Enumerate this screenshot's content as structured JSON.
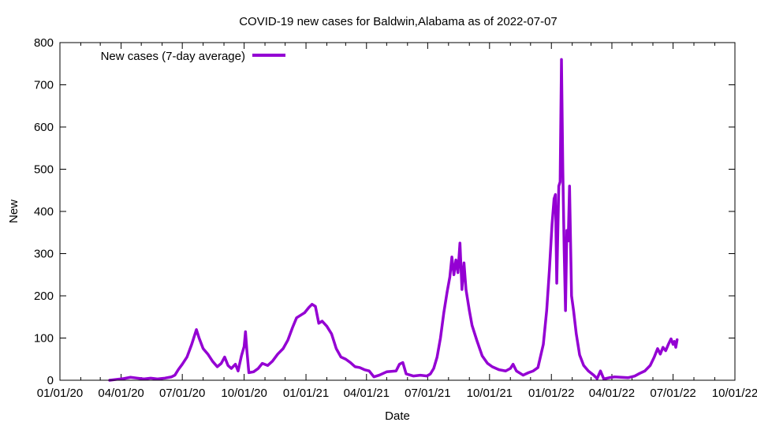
{
  "chart_data": {
    "type": "line",
    "title": "COVID-19 new cases for Baldwin,Alabama as of 2022-07-07",
    "xlabel": "Date",
    "ylabel": "New",
    "xlim": [
      "2020-01-01",
      "2022-10-01"
    ],
    "ylim": [
      0,
      800
    ],
    "x_ticks": [
      "01/01/20",
      "04/01/20",
      "07/01/20",
      "10/01/20",
      "01/01/21",
      "04/01/21",
      "07/01/21",
      "10/01/21",
      "01/01/22",
      "04/01/22",
      "07/01/22",
      "10/01/22"
    ],
    "y_ticks": [
      0,
      100,
      200,
      300,
      400,
      500,
      600,
      700,
      800
    ],
    "grid": false,
    "legend_position": "top-left",
    "series": [
      {
        "name": "New cases (7-day average)",
        "color": "#9400d3",
        "points": [
          [
            "2020-03-15",
            0
          ],
          [
            "2020-03-25",
            2
          ],
          [
            "2020-04-05",
            4
          ],
          [
            "2020-04-15",
            7
          ],
          [
            "2020-04-25",
            5
          ],
          [
            "2020-05-05",
            3
          ],
          [
            "2020-05-15",
            5
          ],
          [
            "2020-05-25",
            3
          ],
          [
            "2020-06-05",
            5
          ],
          [
            "2020-06-15",
            8
          ],
          [
            "2020-06-20",
            12
          ],
          [
            "2020-06-25",
            25
          ],
          [
            "2020-07-01",
            38
          ],
          [
            "2020-07-08",
            55
          ],
          [
            "2020-07-15",
            85
          ],
          [
            "2020-07-19",
            105
          ],
          [
            "2020-07-22",
            120
          ],
          [
            "2020-07-26",
            100
          ],
          [
            "2020-08-01",
            75
          ],
          [
            "2020-08-08",
            62
          ],
          [
            "2020-08-15",
            45
          ],
          [
            "2020-08-22",
            32
          ],
          [
            "2020-08-28",
            40
          ],
          [
            "2020-09-02",
            55
          ],
          [
            "2020-09-07",
            35
          ],
          [
            "2020-09-12",
            28
          ],
          [
            "2020-09-18",
            38
          ],
          [
            "2020-09-22",
            22
          ],
          [
            "2020-09-27",
            58
          ],
          [
            "2020-10-01",
            80
          ],
          [
            "2020-10-03",
            115
          ],
          [
            "2020-10-05",
            72
          ],
          [
            "2020-10-08",
            18
          ],
          [
            "2020-10-15",
            20
          ],
          [
            "2020-10-22",
            28
          ],
          [
            "2020-10-28",
            40
          ],
          [
            "2020-11-05",
            35
          ],
          [
            "2020-11-12",
            45
          ],
          [
            "2020-11-20",
            62
          ],
          [
            "2020-11-28",
            75
          ],
          [
            "2020-12-05",
            95
          ],
          [
            "2020-12-12",
            125
          ],
          [
            "2020-12-18",
            148
          ],
          [
            "2020-12-25",
            155
          ],
          [
            "2020-12-30",
            160
          ],
          [
            "2021-01-05",
            172
          ],
          [
            "2021-01-10",
            180
          ],
          [
            "2021-01-15",
            175
          ],
          [
            "2021-01-20",
            135
          ],
          [
            "2021-01-25",
            140
          ],
          [
            "2021-02-01",
            128
          ],
          [
            "2021-02-08",
            110
          ],
          [
            "2021-02-15",
            75
          ],
          [
            "2021-02-22",
            55
          ],
          [
            "2021-03-01",
            50
          ],
          [
            "2021-03-08",
            42
          ],
          [
            "2021-03-15",
            32
          ],
          [
            "2021-03-22",
            30
          ],
          [
            "2021-03-29",
            25
          ],
          [
            "2021-04-05",
            22
          ],
          [
            "2021-04-12",
            8
          ],
          [
            "2021-04-20",
            12
          ],
          [
            "2021-05-01",
            20
          ],
          [
            "2021-05-15",
            22
          ],
          [
            "2021-05-20",
            38
          ],
          [
            "2021-05-25",
            42
          ],
          [
            "2021-05-30",
            15
          ],
          [
            "2021-06-10",
            10
          ],
          [
            "2021-06-20",
            12
          ],
          [
            "2021-06-30",
            10
          ],
          [
            "2021-07-05",
            15
          ],
          [
            "2021-07-10",
            28
          ],
          [
            "2021-07-15",
            55
          ],
          [
            "2021-07-20",
            100
          ],
          [
            "2021-07-25",
            160
          ],
          [
            "2021-07-30",
            210
          ],
          [
            "2021-08-03",
            245
          ],
          [
            "2021-08-06",
            292
          ],
          [
            "2021-08-09",
            250
          ],
          [
            "2021-08-12",
            285
          ],
          [
            "2021-08-15",
            255
          ],
          [
            "2021-08-18",
            325
          ],
          [
            "2021-08-21",
            215
          ],
          [
            "2021-08-24",
            278
          ],
          [
            "2021-08-27",
            215
          ],
          [
            "2021-09-01",
            165
          ],
          [
            "2021-09-05",
            130
          ],
          [
            "2021-09-12",
            95
          ],
          [
            "2021-09-20",
            58
          ],
          [
            "2021-09-28",
            40
          ],
          [
            "2021-10-05",
            32
          ],
          [
            "2021-10-15",
            25
          ],
          [
            "2021-10-25",
            22
          ],
          [
            "2021-11-01",
            28
          ],
          [
            "2021-11-05",
            38
          ],
          [
            "2021-11-10",
            22
          ],
          [
            "2021-11-20",
            12
          ],
          [
            "2021-11-28",
            18
          ],
          [
            "2021-12-05",
            22
          ],
          [
            "2021-12-12",
            30
          ],
          [
            "2021-12-20",
            85
          ],
          [
            "2021-12-25",
            165
          ],
          [
            "2021-12-29",
            260
          ],
          [
            "2022-01-02",
            370
          ],
          [
            "2022-01-05",
            430
          ],
          [
            "2022-01-07",
            440
          ],
          [
            "2022-01-09",
            230
          ],
          [
            "2022-01-12",
            460
          ],
          [
            "2022-01-14",
            470
          ],
          [
            "2022-01-16",
            760
          ],
          [
            "2022-01-18",
            500
          ],
          [
            "2022-01-20",
            310
          ],
          [
            "2022-01-22",
            165
          ],
          [
            "2022-01-24",
            355
          ],
          [
            "2022-01-26",
            330
          ],
          [
            "2022-01-28",
            460
          ],
          [
            "2022-01-31",
            200
          ],
          [
            "2022-02-03",
            165
          ],
          [
            "2022-02-07",
            110
          ],
          [
            "2022-02-12",
            60
          ],
          [
            "2022-02-18",
            35
          ],
          [
            "2022-02-25",
            22
          ],
          [
            "2022-03-05",
            12
          ],
          [
            "2022-03-10",
            4
          ],
          [
            "2022-03-15",
            22
          ],
          [
            "2022-03-20",
            3
          ],
          [
            "2022-03-28",
            6
          ],
          [
            "2022-04-05",
            8
          ],
          [
            "2022-04-15",
            7
          ],
          [
            "2022-04-25",
            6
          ],
          [
            "2022-05-05",
            10
          ],
          [
            "2022-05-12",
            16
          ],
          [
            "2022-05-20",
            22
          ],
          [
            "2022-05-28",
            35
          ],
          [
            "2022-06-03",
            55
          ],
          [
            "2022-06-08",
            75
          ],
          [
            "2022-06-12",
            62
          ],
          [
            "2022-06-16",
            78
          ],
          [
            "2022-06-20",
            70
          ],
          [
            "2022-06-24",
            85
          ],
          [
            "2022-06-28",
            98
          ],
          [
            "2022-07-01",
            85
          ],
          [
            "2022-07-03",
            92
          ],
          [
            "2022-07-05",
            78
          ],
          [
            "2022-07-07",
            96
          ]
        ]
      }
    ]
  }
}
